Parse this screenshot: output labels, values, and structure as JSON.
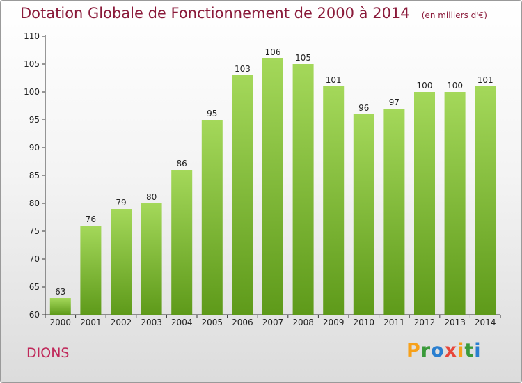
{
  "header": {
    "title": "Dotation Globale de Fonctionnement de 2000 à 2014",
    "unit": "(en milliers d'€)"
  },
  "footer": {
    "commune": "DIONS",
    "logo_letters": [
      "P",
      "r",
      "o",
      "x",
      "i",
      "t",
      "i"
    ],
    "logo_colors": [
      "#f7a11a",
      "#3a9a3a",
      "#2a7fd0",
      "#e8463a",
      "#f7a11a",
      "#3a9a3a",
      "#2a7fd0"
    ]
  },
  "colors": {
    "bar": "#7cbd2e",
    "bar_light": "#a4d85a",
    "bar_dark": "#5e9a1a",
    "axis": "#333333",
    "grid": "#cccccc"
  },
  "chart_data": {
    "type": "bar",
    "categories": [
      "2000",
      "2001",
      "2002",
      "2003",
      "2004",
      "2005",
      "2006",
      "2007",
      "2008",
      "2009",
      "2010",
      "2011",
      "2012",
      "2013",
      "2014"
    ],
    "values": [
      63,
      76,
      79,
      80,
      86,
      95,
      103,
      106,
      105,
      101,
      96,
      97,
      100,
      100,
      101
    ],
    "ylim": [
      60,
      110
    ],
    "yticks": [
      60,
      65,
      70,
      75,
      80,
      85,
      90,
      95,
      100,
      105,
      110
    ],
    "grid": false
  }
}
